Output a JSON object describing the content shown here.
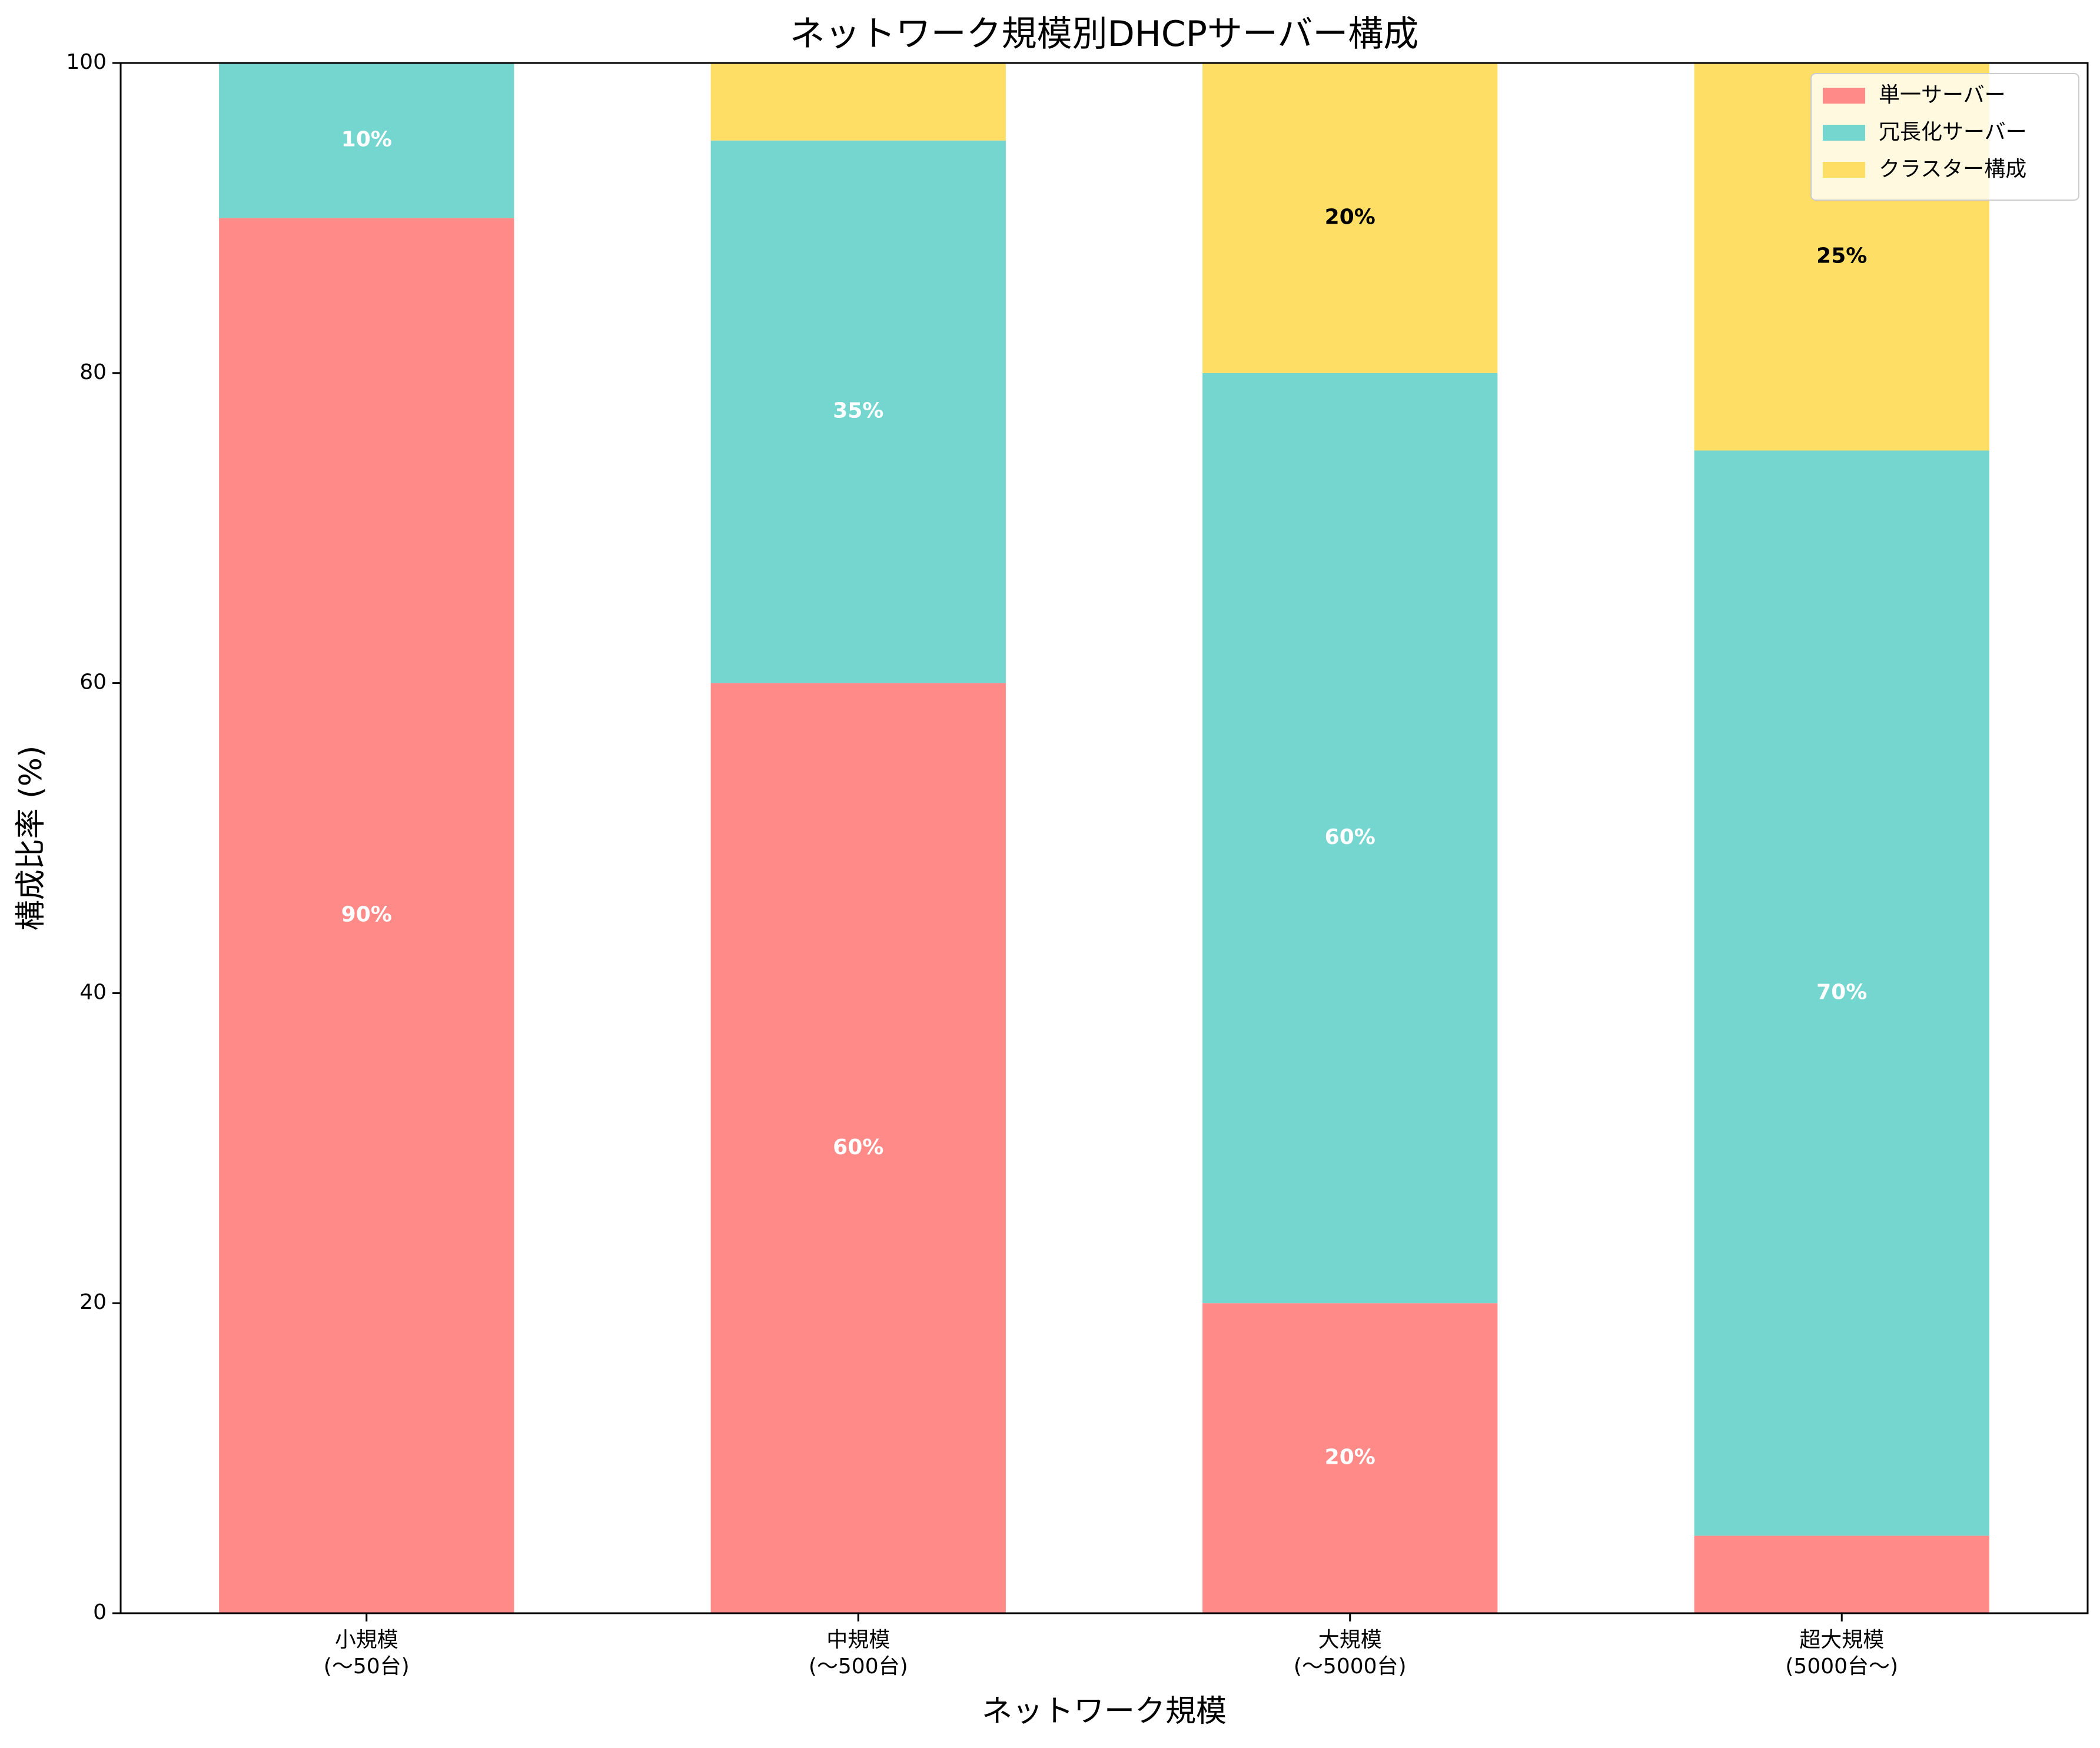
{
  "chart_data": {
    "type": "bar",
    "stacked": true,
    "title": "ネットワーク規模別DHCPサーバー構成",
    "xlabel": "ネットワーク規模",
    "ylabel": "構成比率 (%)",
    "ylim": [
      0,
      100
    ],
    "yticks": [
      0,
      20,
      40,
      60,
      80,
      100
    ],
    "categories": [
      [
        "小規模",
        "(〜50台)"
      ],
      [
        "中規模",
        "(〜500台)"
      ],
      [
        "大規模",
        "(〜5000台)"
      ],
      [
        "超大規模",
        "(5000台〜)"
      ]
    ],
    "series": [
      {
        "name": "単一サーバー",
        "color": "#FF8A88",
        "label_color": "#ffffff",
        "values": [
          90,
          60,
          20,
          5
        ],
        "labels": [
          "90%",
          "60%",
          "20%",
          ""
        ]
      },
      {
        "name": "冗長化サーバー",
        "color": "#74D6CF",
        "label_color": "#ffffff",
        "values": [
          10,
          35,
          60,
          70
        ],
        "labels": [
          "10%",
          "35%",
          "60%",
          "70%"
        ]
      },
      {
        "name": "クラスター構成",
        "color": "#FFDE66",
        "label_color": "#000000",
        "values": [
          0,
          5,
          20,
          25
        ],
        "labels": [
          "",
          "",
          "20%",
          "25%"
        ]
      }
    ],
    "legend": "top-right",
    "grid": false
  }
}
